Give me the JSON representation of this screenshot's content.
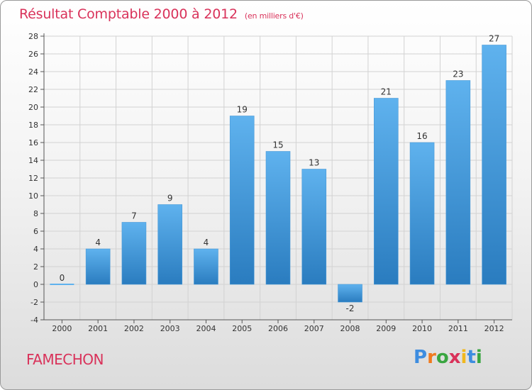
{
  "title": "Résultat Comptable 2000 à 2012",
  "subtitle": "(en milliers d'€)",
  "commune": "FAMECHON",
  "logo": {
    "letters": [
      "P",
      "r",
      "o",
      "x",
      "i",
      "t",
      "i"
    ],
    "colors": [
      "#3d8de0",
      "#f07a1e",
      "#3aa641",
      "#d9325a",
      "#f0b81e",
      "#3d8de0",
      "#3aa641"
    ]
  },
  "colors": {
    "bar_top": "#5fb2ee",
    "bar_bottom": "#2a7cbf",
    "title": "#d9325a",
    "grid": "#d2d2d2"
  },
  "chart_data": {
    "type": "bar",
    "title": "Résultat Comptable 2000 à 2012",
    "xlabel": "",
    "ylabel": "",
    "categories": [
      "2000",
      "2001",
      "2002",
      "2003",
      "2004",
      "2005",
      "2006",
      "2007",
      "2008",
      "2009",
      "2010",
      "2011",
      "2012"
    ],
    "values": [
      0,
      4,
      7,
      9,
      4,
      19,
      15,
      13,
      -2,
      21,
      16,
      23,
      27
    ],
    "labels": [
      "0",
      "4",
      "7",
      "9",
      "4",
      "19",
      "15",
      "13",
      "-2",
      "21",
      "16",
      "23",
      "27"
    ],
    "ylim": [
      -4,
      28
    ],
    "yticks": [
      -4,
      -2,
      0,
      2,
      4,
      6,
      8,
      10,
      12,
      14,
      16,
      18,
      20,
      22,
      24,
      26,
      28
    ],
    "grid": true
  }
}
